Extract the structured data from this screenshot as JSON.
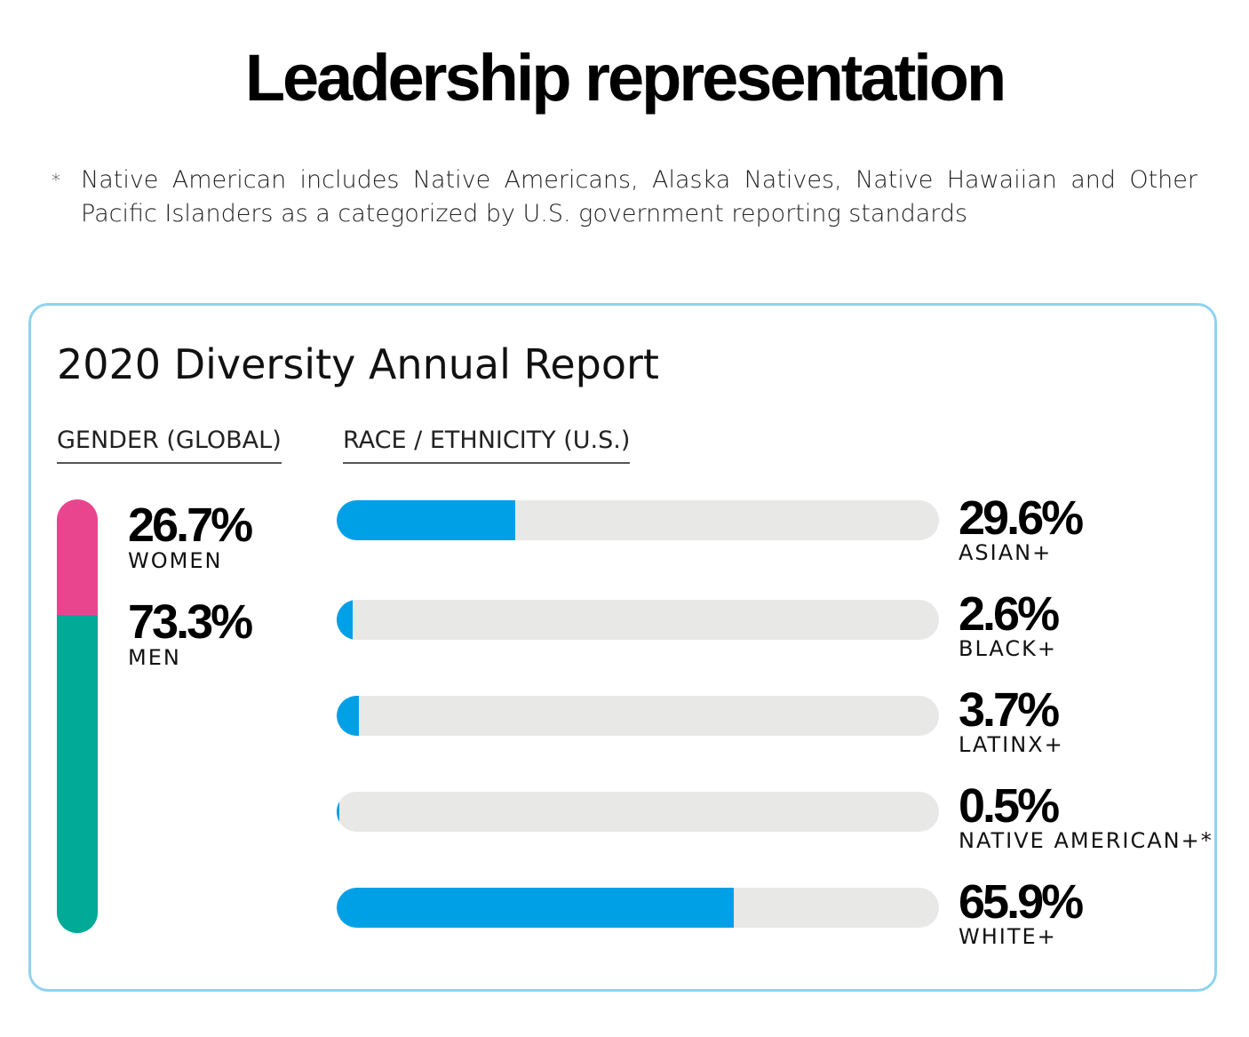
{
  "header": {
    "title": "Leadership representation",
    "footnote_mark": "*",
    "footnote_text": "Native American includes Native Americans, Alaska Natives, Native Hawaiian and Other Pacific Islanders as a categorized by U.S. government reporting standards"
  },
  "card": {
    "title": "2020 Diversity Annual Report",
    "gender_label": "GENDER (GLOBAL)",
    "race_label": "RACE / ETHNICITY (U.S.)"
  },
  "colors": {
    "women": "#e9458f",
    "men": "#00aa96",
    "race_fill": "#00a0e6",
    "track": "#e8e8e6",
    "card_border": "#8fd3f0"
  },
  "chart_data": [
    {
      "type": "bar",
      "orientation": "vertical-stacked",
      "title": "GENDER (GLOBAL)",
      "categories": [
        "WOMEN",
        "MEN"
      ],
      "values": [
        26.7,
        73.3
      ],
      "labels": [
        "26.7%",
        "73.3%"
      ],
      "unit": "%"
    },
    {
      "type": "bar",
      "orientation": "horizontal",
      "title": "RACE / ETHNICITY (U.S.)",
      "categories": [
        "ASIAN+",
        "BLACK+",
        "LATINX+",
        "NATIVE AMERICAN+*",
        "WHITE+"
      ],
      "values": [
        29.6,
        2.6,
        3.7,
        0.5,
        65.9
      ],
      "labels": [
        "29.6%",
        "2.6%",
        "3.7%",
        "0.5%",
        "65.9%"
      ],
      "xlim": [
        0,
        100
      ],
      "unit": "%"
    }
  ]
}
